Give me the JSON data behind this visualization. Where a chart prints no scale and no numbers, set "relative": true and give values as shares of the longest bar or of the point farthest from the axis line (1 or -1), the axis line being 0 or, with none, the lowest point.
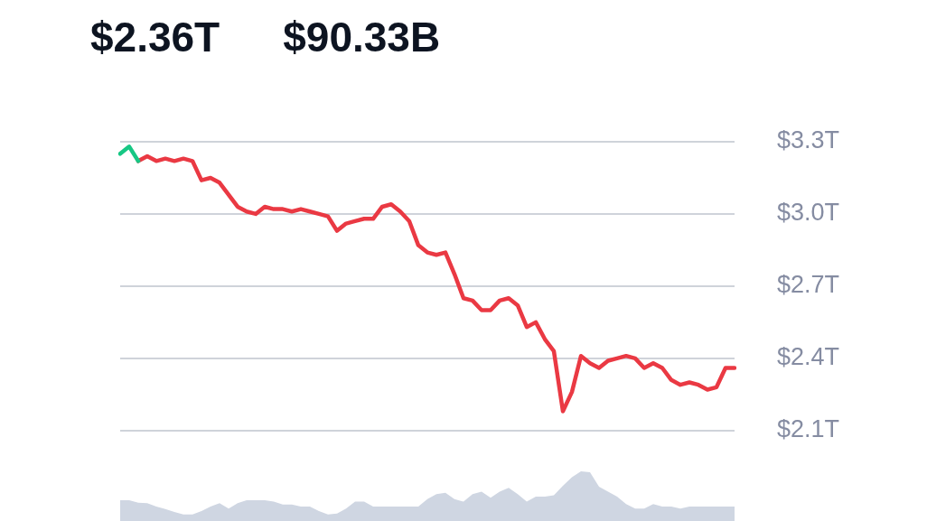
{
  "chart_data": [
    {
      "type": "line",
      "title": "$2.36T",
      "subtitle": "$90.33B",
      "categories": [
        null,
        null,
        null,
        null,
        null,
        null,
        null,
        null,
        null,
        null,
        null,
        null,
        null,
        null,
        null,
        null,
        null,
        null,
        null,
        null,
        null,
        null,
        null,
        null,
        null,
        null,
        null,
        null,
        null,
        null,
        null,
        null,
        null,
        null,
        null,
        null,
        null,
        null,
        null,
        null,
        null,
        null,
        null,
        null,
        null,
        null,
        null,
        null,
        null,
        null,
        null,
        null,
        null,
        null,
        null,
        null,
        null,
        null,
        null,
        null,
        null,
        null,
        null,
        null,
        null,
        null,
        null,
        null,
        null
      ],
      "series": [
        {
          "color": "#16c784",
          "values": [
            3.25,
            3.28,
            3.22,
            null,
            null,
            null,
            null,
            null,
            null,
            null,
            null,
            null,
            null,
            null,
            null,
            null,
            null,
            null,
            null,
            null,
            null,
            null,
            null,
            null,
            null,
            null,
            null,
            null,
            null,
            null,
            null,
            null,
            null,
            null,
            null,
            null,
            null,
            null,
            null,
            null,
            null,
            null,
            null,
            null,
            null,
            null,
            null,
            null,
            null,
            null,
            null,
            null,
            null,
            null,
            null,
            null,
            null,
            null,
            null,
            null,
            null,
            null,
            null,
            null,
            null,
            null,
            null,
            null,
            null
          ]
        },
        {
          "color": "#ea3943",
          "values": [
            null,
            null,
            3.22,
            3.24,
            3.22,
            3.23,
            3.22,
            3.23,
            3.22,
            3.14,
            3.15,
            3.13,
            3.08,
            3.03,
            3.01,
            3.0,
            3.03,
            3.02,
            3.02,
            3.01,
            3.02,
            3.01,
            3.0,
            2.99,
            2.93,
            2.96,
            2.97,
            2.98,
            2.98,
            3.03,
            3.04,
            3.01,
            2.97,
            2.87,
            2.84,
            2.83,
            2.84,
            2.75,
            2.65,
            2.64,
            2.6,
            2.6,
            2.64,
            2.65,
            2.62,
            2.53,
            2.55,
            2.48,
            2.43,
            2.18,
            2.26,
            2.41,
            2.38,
            2.36,
            2.39,
            2.4,
            2.41,
            2.4,
            2.36,
            2.38,
            2.36,
            2.31,
            2.29,
            2.3,
            2.29,
            2.27,
            2.28,
            2.36,
            2.36
          ]
        }
      ],
      "ylim": [
        2.1,
        3.3
      ],
      "yticks": [
        {
          "value": 2.1,
          "label": "$2.1T"
        },
        {
          "value": 2.4,
          "label": "$2.4T"
        },
        {
          "value": 2.7,
          "label": "$2.7T"
        },
        {
          "value": 3.0,
          "label": "$3.0T"
        },
        {
          "value": 3.3,
          "label": "$3.3T"
        }
      ],
      "grid": "y"
    },
    {
      "type": "area",
      "relative": true,
      "categories": [
        null,
        null,
        null,
        null,
        null,
        null,
        null,
        null,
        null,
        null,
        null,
        null,
        null,
        null,
        null,
        null,
        null,
        null,
        null,
        null,
        null,
        null,
        null,
        null,
        null,
        null,
        null,
        null,
        null,
        null,
        null,
        null,
        null,
        null,
        null,
        null,
        null,
        null,
        null,
        null,
        null,
        null,
        null,
        null,
        null,
        null,
        null,
        null,
        null,
        null,
        null,
        null,
        null,
        null,
        null,
        null,
        null,
        null,
        null,
        null,
        null,
        null,
        null,
        null,
        null,
        null,
        null,
        null,
        null
      ],
      "series": [
        {
          "color": "#cfd6e2",
          "values": [
            0.42,
            0.42,
            0.37,
            0.36,
            0.29,
            0.24,
            0.18,
            0.13,
            0.13,
            0.2,
            0.29,
            0.36,
            0.25,
            0.36,
            0.42,
            0.42,
            0.42,
            0.39,
            0.33,
            0.33,
            0.29,
            0.29,
            0.2,
            0.13,
            0.15,
            0.25,
            0.39,
            0.39,
            0.29,
            0.29,
            0.29,
            0.29,
            0.29,
            0.29,
            0.44,
            0.54,
            0.57,
            0.44,
            0.39,
            0.54,
            0.59,
            0.47,
            0.59,
            0.67,
            0.54,
            0.39,
            0.49,
            0.49,
            0.52,
            0.71,
            0.88,
            1.0,
            0.98,
            0.69,
            0.59,
            0.49,
            0.34,
            0.25,
            0.25,
            0.34,
            0.29,
            0.29,
            0.25,
            0.29,
            0.29,
            0.29,
            0.29,
            0.29,
            0.29
          ]
        }
      ]
    }
  ]
}
